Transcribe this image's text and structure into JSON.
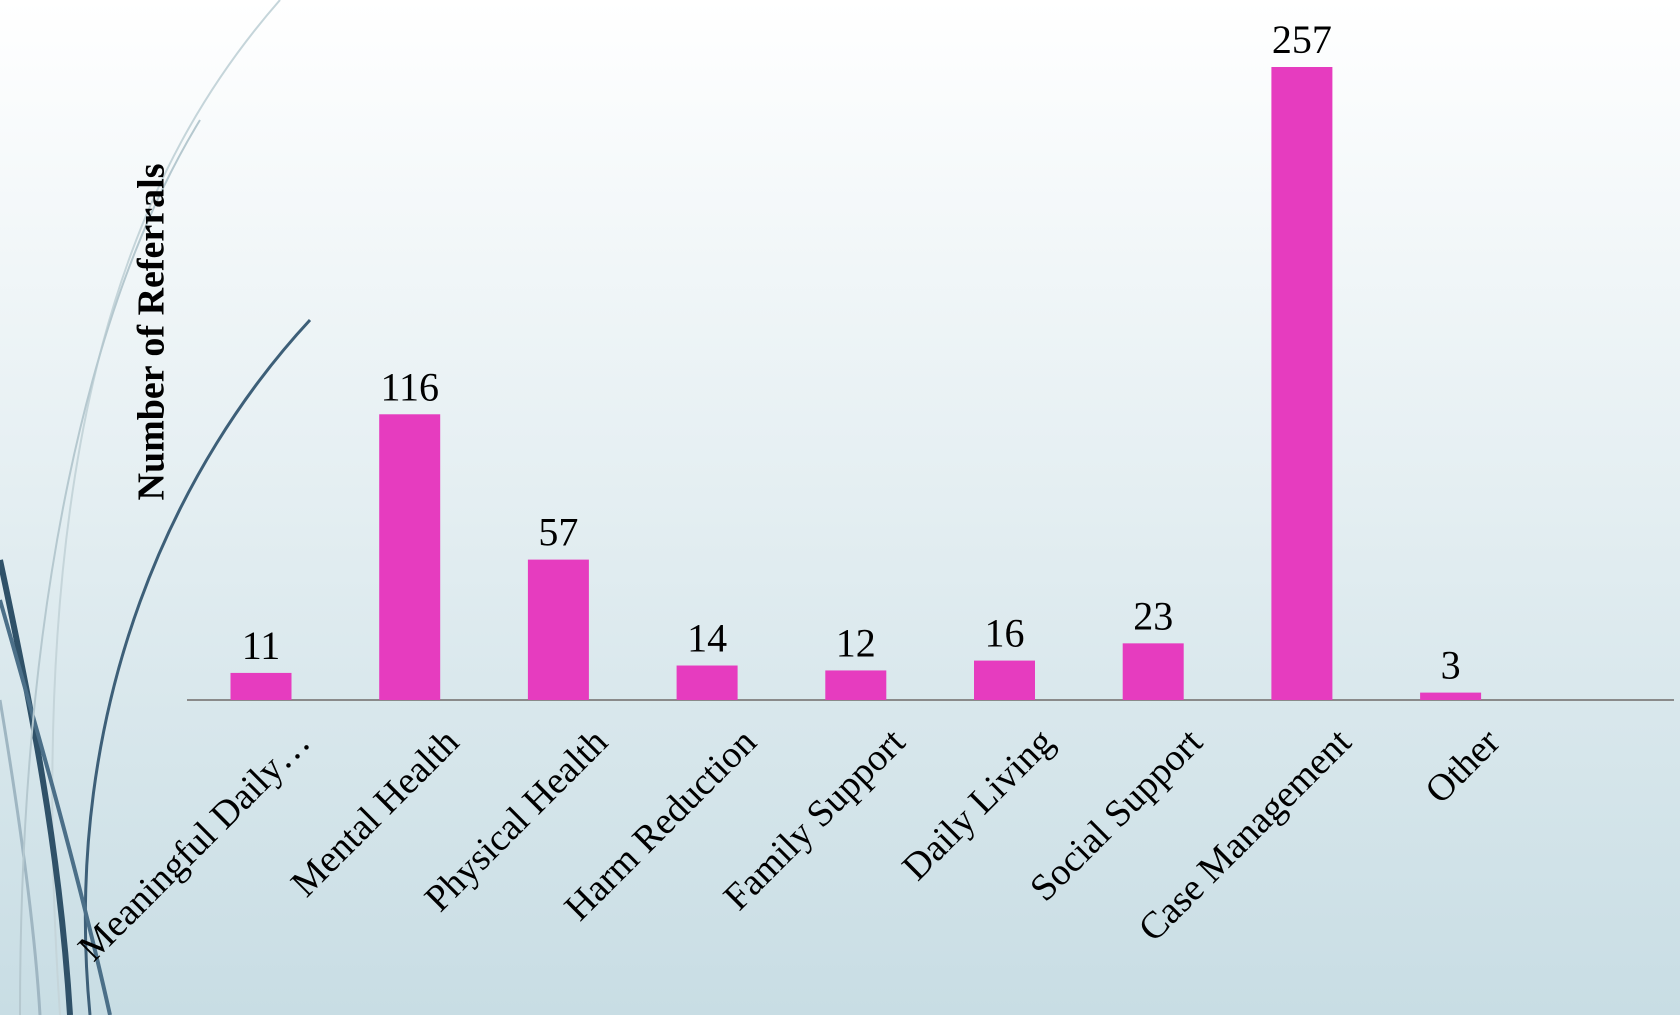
{
  "chart_data": {
    "type": "bar",
    "y_label": "Number of Referrals",
    "categories": [
      "Meaningful Daily…",
      "Mental Health",
      "Physical Health",
      "Harm Reduction",
      "Family Support",
      "Daily Living",
      "Social Support",
      "Case Management",
      "Other"
    ],
    "values": [
      11,
      116,
      57,
      14,
      12,
      16,
      23,
      257,
      3
    ],
    "color": "#e63cbf",
    "ylim": [
      0,
      257
    ]
  }
}
